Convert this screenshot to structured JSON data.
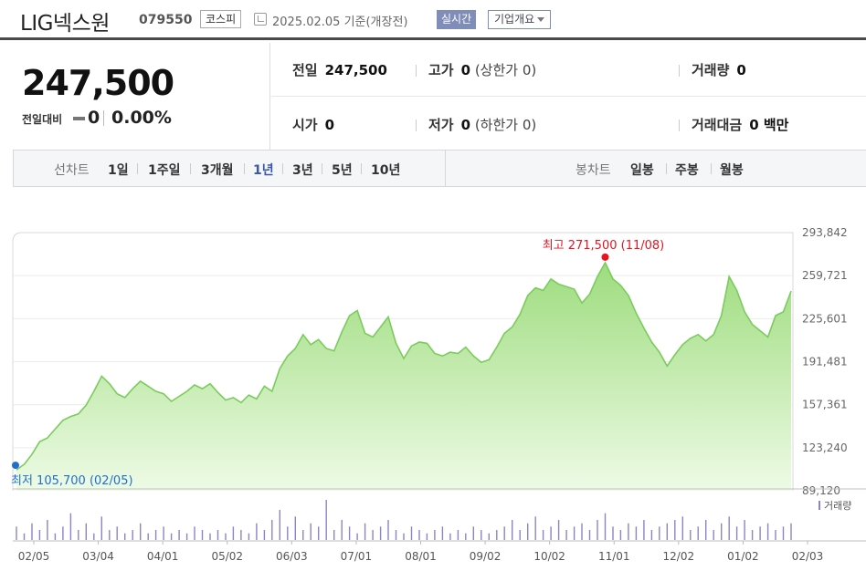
{
  "header": {
    "name": "LIG넥스원",
    "code": "079550",
    "market": "코스피",
    "date_text": "2025.02.05  기준(개장전)",
    "realtime_label": "실시간",
    "company_label": "기업개요"
  },
  "price": {
    "current": "247,500",
    "change_label": "전일대비",
    "change": "0",
    "change_pct": "0.00%"
  },
  "stats": {
    "prev_close_label": "전일",
    "prev_close": "247,500",
    "high_label": "고가",
    "high": "0",
    "upper_limit": "(상한가 0)",
    "volume_label": "거래량",
    "volume": "0",
    "open_label": "시가",
    "open": "0",
    "low_label": "저가",
    "low": "0",
    "lower_limit": "(하한가 0)",
    "amount_label": "거래대금",
    "amount": "0 백만"
  },
  "tabs": {
    "line_label": "선차트",
    "line_tabs": [
      "1일",
      "1주일",
      "3개월",
      "1년",
      "3년",
      "5년",
      "10년"
    ],
    "active": "1년",
    "candle_label": "봉차트",
    "candle_tabs": [
      "일봉",
      "주봉",
      "월봉"
    ]
  },
  "chart_data": {
    "type": "area",
    "y_ticks": [
      "293,842",
      "259,721",
      "225,601",
      "191,481",
      "157,361",
      "123,240",
      "89,120"
    ],
    "ylim": [
      89120,
      293842
    ],
    "x_ticks": [
      "02/05",
      "03/04",
      "04/01",
      "05/02",
      "06/03",
      "07/01",
      "08/01",
      "09/02",
      "10/02",
      "11/01",
      "12/02",
      "01/02",
      "02/03"
    ],
    "high_label": "최고 271,500 (11/08)",
    "low_label": "최저 105,700 (02/05)",
    "high_point": {
      "x": "11/08",
      "y": 271500
    },
    "low_point": {
      "x": "02/05",
      "y": 105700
    },
    "volume_legend": "거래량",
    "colors": {
      "line": "#7acc5c",
      "fill_top": "#9edc7e",
      "fill_bottom": "#eefbe6",
      "high": "#e8141e",
      "low": "#1f6fcb",
      "volume": "#8c84c4"
    },
    "series": [
      {
        "values": [
          105700,
          110000,
          118000,
          128000,
          131000,
          138000,
          145000,
          148000,
          150000,
          157000,
          168000,
          180000,
          174000,
          166000,
          163000,
          170000,
          176000,
          172000,
          168000,
          166000,
          160000,
          164000,
          168000,
          173000,
          170000,
          174000,
          167000,
          161000,
          163000,
          159000,
          165000,
          162000,
          172000,
          168000,
          186000,
          196000,
          202000,
          213000,
          205000,
          209000,
          202000,
          200000,
          215000,
          228000,
          232000,
          214000,
          211000,
          219000,
          227000,
          206000,
          194000,
          204000,
          207000,
          206000,
          198000,
          196000,
          199000,
          198000,
          203000,
          196000,
          191000,
          193000,
          203000,
          214000,
          219000,
          229000,
          244000,
          250000,
          248000,
          257000,
          253000,
          251000,
          249000,
          238000,
          245000,
          259000,
          270000,
          257000,
          252000,
          244000,
          230000,
          218000,
          207000,
          199000,
          188000,
          197000,
          205000,
          210000,
          213000,
          208000,
          213000,
          228000,
          259000,
          248000,
          231000,
          221000,
          216000,
          211000,
          228000,
          231000,
          247500
        ]
      }
    ],
    "volume": [
      4,
      2,
      5,
      3,
      6,
      2,
      4,
      8,
      3,
      5,
      2,
      7,
      3,
      4,
      2,
      3,
      5,
      2,
      3,
      4,
      2,
      3,
      2,
      4,
      3,
      2,
      3,
      2,
      4,
      3,
      2,
      5,
      3,
      6,
      9,
      4,
      7,
      3,
      5,
      4,
      12,
      3,
      6,
      4,
      2,
      5,
      3,
      4,
      6,
      3,
      2,
      4,
      3,
      2,
      3,
      4,
      2,
      3,
      2,
      4,
      3,
      2,
      3,
      4,
      6,
      3,
      5,
      7,
      3,
      4,
      6,
      3,
      4,
      5,
      3,
      6,
      8,
      4,
      3,
      5,
      4,
      6,
      3,
      4,
      5,
      6,
      7,
      3,
      4,
      6,
      3,
      5,
      7,
      4,
      6,
      3,
      4,
      5,
      3,
      4,
      5
    ]
  }
}
